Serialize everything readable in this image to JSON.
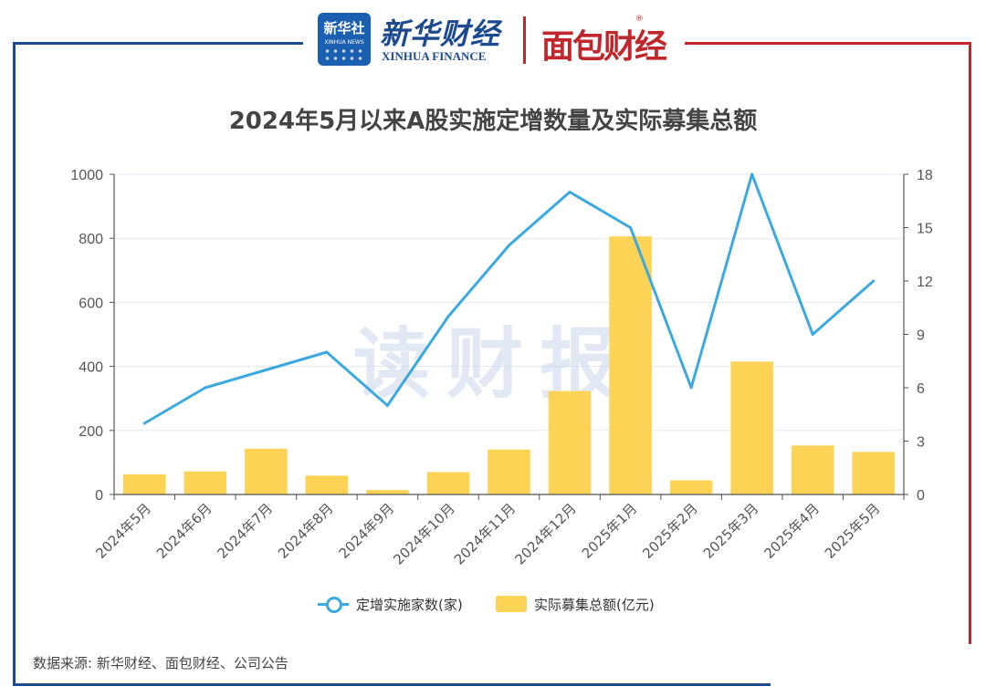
{
  "header": {
    "xinhua_badge_cn": "新华社",
    "xinhua_badge_en": "XINHUA NEWS",
    "xinhua_finance_cn": "新华财经",
    "xinhua_finance_en": "XINHUA FINANCE",
    "mianbao_logo": "面包财经",
    "registered_mark": "®"
  },
  "watermark": "读财报",
  "source": "数据来源: 新华财经、面包财经、公司公告",
  "colors": {
    "line": "#3ba9e0",
    "bar": "#fdd356",
    "frame_blue": "#1d4a8f",
    "frame_red": "#c0272d"
  },
  "chart_data": {
    "type": "bar+line",
    "title": "2024年5月以来A股实施定增数量及实际募集总额",
    "categories": [
      "2024年5月",
      "2024年6月",
      "2024年7月",
      "2024年8月",
      "2024年9月",
      "2024年10月",
      "2024年11月",
      "2024年12月",
      "2025年1月",
      "2025年2月",
      "2025年3月",
      "2025年4月",
      "2025年5月"
    ],
    "series": [
      {
        "name": "定增实施家数(家)",
        "type": "line",
        "axis": "right",
        "values": [
          4,
          6,
          7,
          8,
          5,
          10,
          14,
          17,
          15,
          6,
          18,
          9,
          12
        ]
      },
      {
        "name": "实际募集总额(亿元)",
        "type": "bar",
        "axis": "left",
        "values": [
          63,
          72,
          143,
          59,
          14,
          70,
          140,
          323,
          806,
          44,
          415,
          153,
          133
        ]
      }
    ],
    "left_axis": {
      "min": 0,
      "max": 1000,
      "ticks": [
        "0",
        "200",
        "400",
        "600",
        "800",
        "1000"
      ]
    },
    "right_axis": {
      "min": 0,
      "max": 18,
      "ticks": [
        "0",
        "3",
        "6",
        "9",
        "12",
        "15",
        "18"
      ]
    },
    "grid": true,
    "legend_position": "bottom"
  }
}
